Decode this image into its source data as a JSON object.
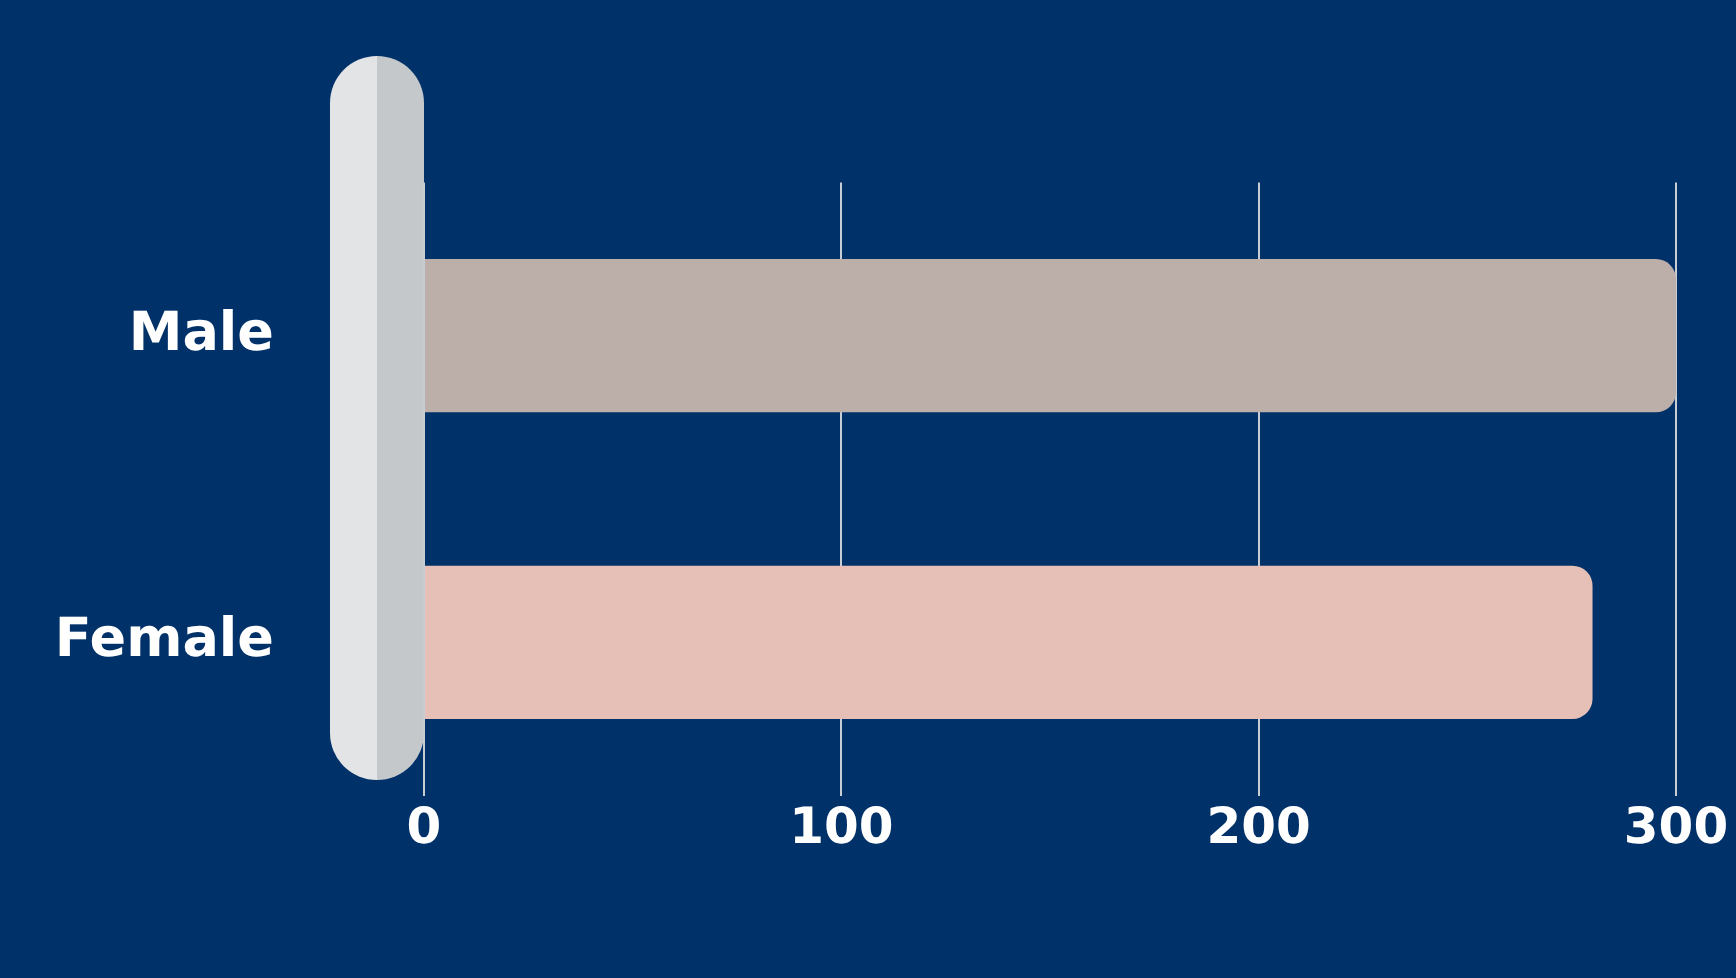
{
  "chart_data": {
    "type": "bar",
    "orientation": "horizontal",
    "categories": [
      "Male",
      "Female"
    ],
    "values": [
      300,
      280
    ],
    "colors": [
      "#bcaea8",
      "#e6c0b6"
    ],
    "xlim": [
      0,
      300
    ],
    "xticks": [
      0,
      100,
      200,
      300
    ],
    "grid": "x"
  }
}
